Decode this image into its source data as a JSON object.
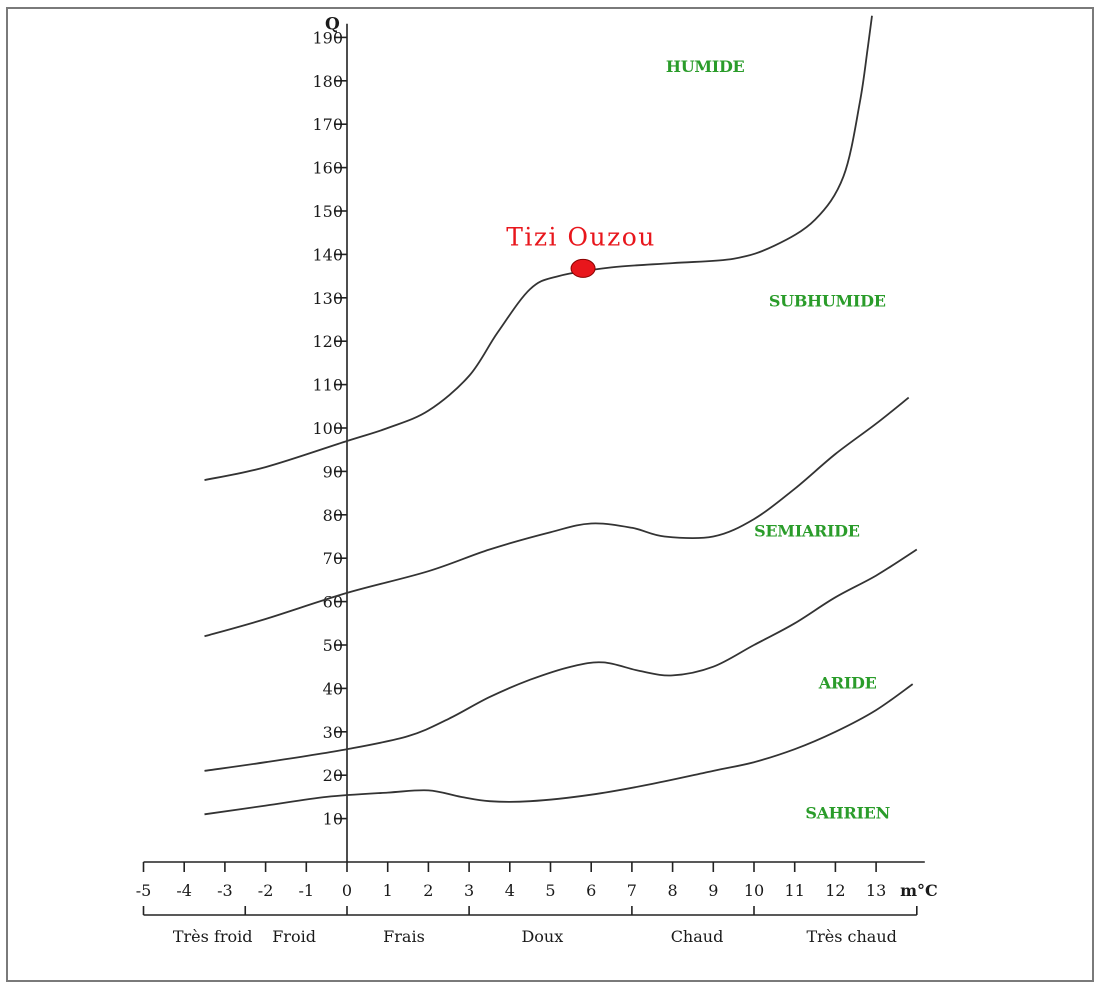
{
  "chart_data": {
    "type": "line",
    "title": "",
    "ylabel": "Q",
    "xlabel": "m°C",
    "xlim": [
      -5,
      14
    ],
    "ylim": [
      0,
      195
    ],
    "x_ticks": [
      -5,
      -4,
      -3,
      -2,
      -1,
      0,
      1,
      2,
      3,
      4,
      5,
      6,
      7,
      8,
      9,
      10,
      11,
      12,
      13
    ],
    "y_ticks": [
      10,
      20,
      30,
      40,
      50,
      60,
      70,
      80,
      90,
      100,
      110,
      120,
      130,
      140,
      150,
      160,
      170,
      180,
      190
    ],
    "zones": [
      {
        "label": "HUMIDE",
        "x": 8.8,
        "y": 182
      },
      {
        "label": "SUBHUMIDE",
        "x": 11.8,
        "y": 128
      },
      {
        "label": "SEMIARIDE",
        "x": 11.3,
        "y": 75
      },
      {
        "label": "ARIDE",
        "x": 12.3,
        "y": 40
      },
      {
        "label": "SAHRIEN",
        "x": 12.3,
        "y": 10
      }
    ],
    "temperature_classes": [
      {
        "label": "Très froid",
        "x_center": -3.3
      },
      {
        "label": "Froid",
        "x_center": -1.3
      },
      {
        "label": "Frais",
        "x_center": 1.4
      },
      {
        "label": "Doux",
        "x_center": 4.8
      },
      {
        "label": "Chaud",
        "x_center": 8.6
      },
      {
        "label": "Très chaud",
        "x_center": 12.4
      }
    ],
    "class_boundaries": [
      -5,
      -2.5,
      0,
      3,
      7,
      10,
      14
    ],
    "series": [
      {
        "points": [
          [
            -3.5,
            88
          ],
          [
            -2,
            91
          ],
          [
            0,
            97
          ],
          [
            1,
            100
          ],
          [
            2,
            104
          ],
          [
            3,
            112
          ],
          [
            3.7,
            122
          ],
          [
            4.5,
            132
          ],
          [
            5.2,
            135
          ],
          [
            6.5,
            137
          ],
          [
            8,
            138
          ],
          [
            9.5,
            139
          ],
          [
            10.5,
            142
          ],
          [
            11.5,
            148
          ],
          [
            12.2,
            158
          ],
          [
            12.6,
            175
          ],
          [
            12.8,
            188
          ],
          [
            12.9,
            195
          ]
        ]
      },
      {
        "points": [
          [
            -3.5,
            52
          ],
          [
            -2,
            56
          ],
          [
            0,
            62
          ],
          [
            2,
            67
          ],
          [
            3.5,
            72
          ],
          [
            5,
            76
          ],
          [
            6,
            78
          ],
          [
            7,
            77
          ],
          [
            7.8,
            75
          ],
          [
            9,
            75
          ],
          [
            10,
            79
          ],
          [
            11,
            86
          ],
          [
            12,
            94
          ],
          [
            13,
            101
          ],
          [
            13.8,
            107
          ]
        ]
      },
      {
        "points": [
          [
            -3.5,
            21
          ],
          [
            -2,
            23
          ],
          [
            0,
            26
          ],
          [
            1.5,
            29
          ],
          [
            2.5,
            33
          ],
          [
            3.5,
            38
          ],
          [
            4.5,
            42
          ],
          [
            5.5,
            45
          ],
          [
            6.3,
            46
          ],
          [
            7.2,
            44
          ],
          [
            8,
            43
          ],
          [
            9,
            45
          ],
          [
            10,
            50
          ],
          [
            11,
            55
          ],
          [
            12,
            61
          ],
          [
            13,
            66
          ],
          [
            14,
            72
          ]
        ]
      },
      {
        "points": [
          [
            -3.5,
            11
          ],
          [
            -2,
            13
          ],
          [
            -0.5,
            15
          ],
          [
            1,
            16
          ],
          [
            2,
            16.5
          ],
          [
            2.8,
            15
          ],
          [
            3.5,
            14
          ],
          [
            4.5,
            14
          ],
          [
            6,
            15.5
          ],
          [
            7.5,
            18
          ],
          [
            9,
            21
          ],
          [
            10,
            23
          ],
          [
            11,
            26
          ],
          [
            12,
            30
          ],
          [
            13,
            35
          ],
          [
            13.9,
            41
          ]
        ]
      }
    ],
    "station": {
      "label": "Tizi Ouzou",
      "x": 5.8,
      "y": 137,
      "color": "#e8161c"
    },
    "colors": {
      "zone_labels": "#2a9c2a",
      "station": "#e8161c",
      "curves": "#333333"
    }
  }
}
